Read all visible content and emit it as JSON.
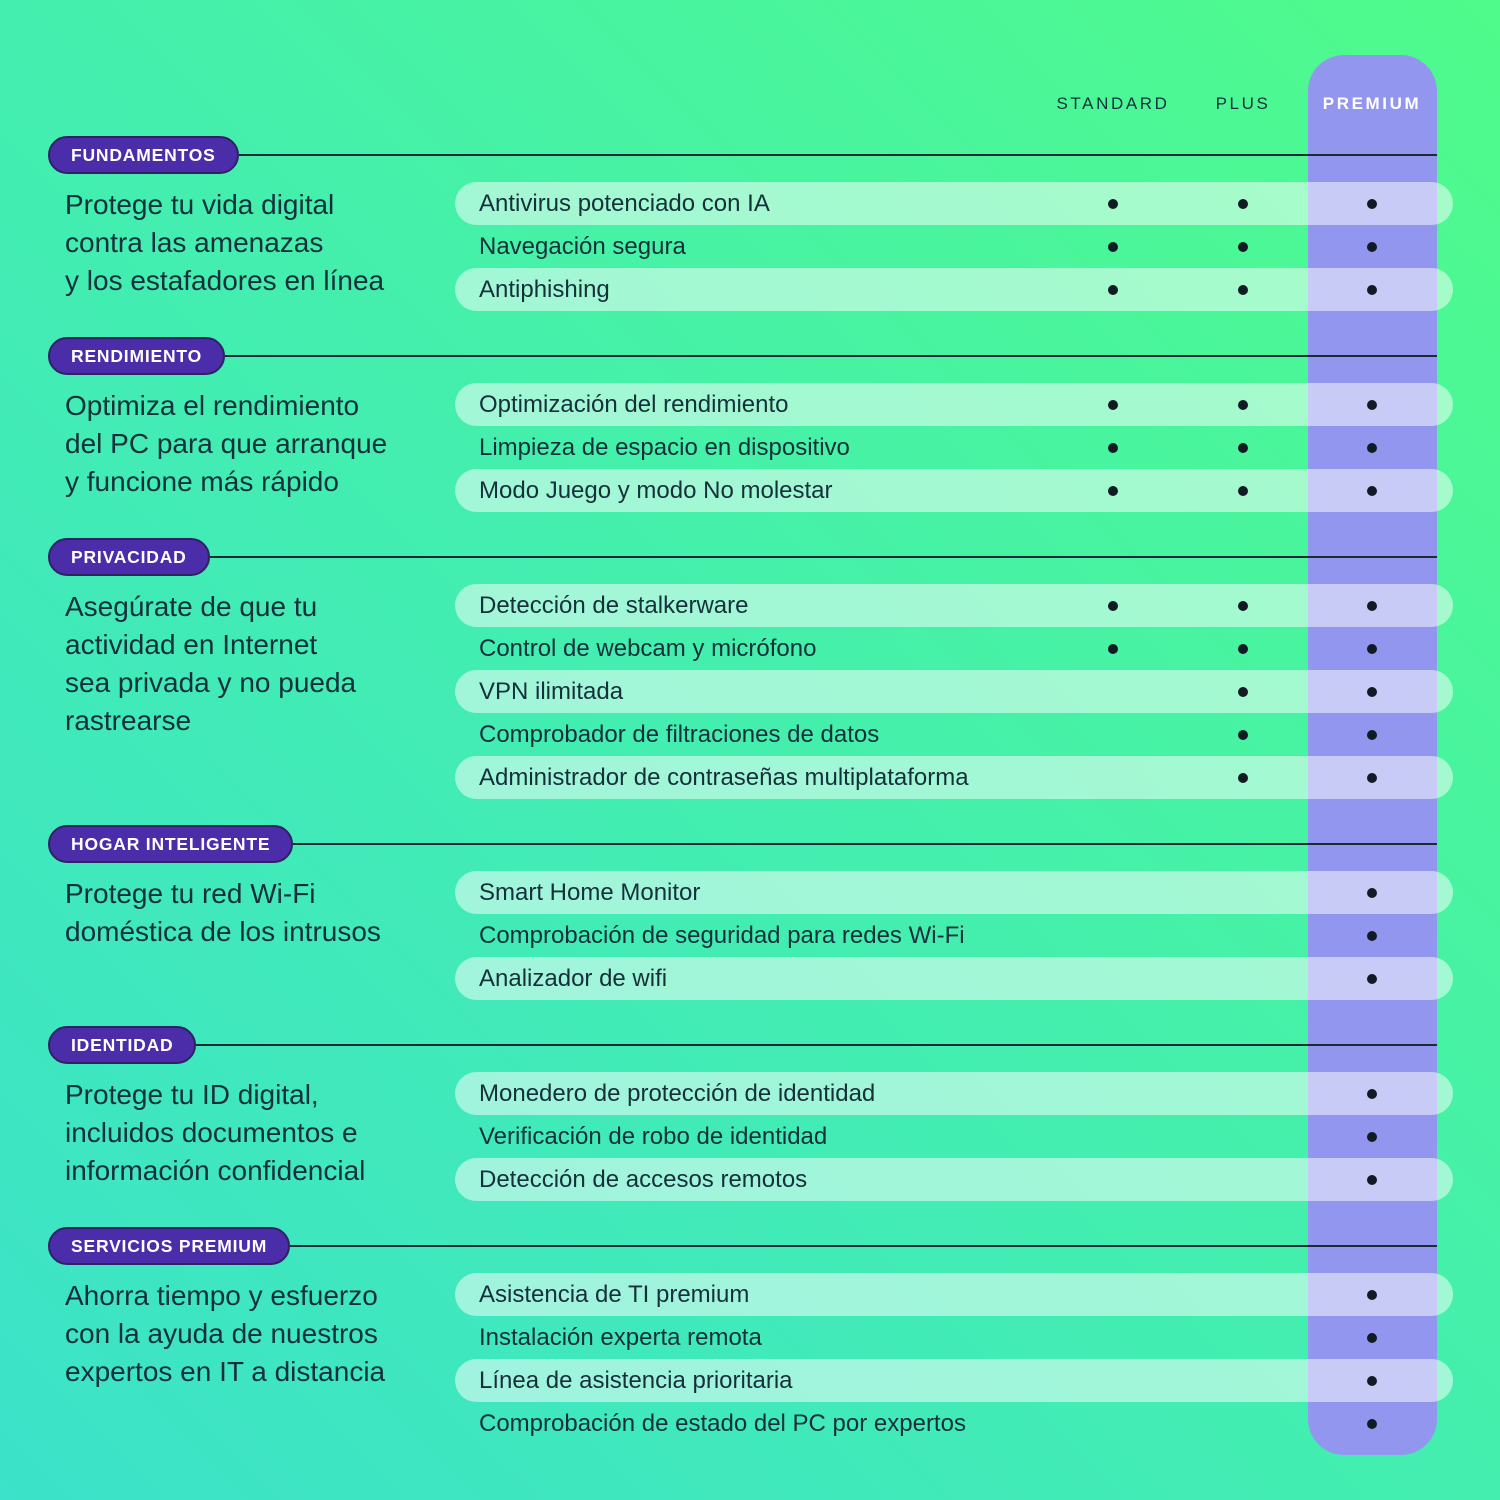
{
  "columns": [
    {
      "label": "STANDARD"
    },
    {
      "label": "PLUS"
    },
    {
      "label": "PREMIUM"
    }
  ],
  "colors": {
    "background_green": "#4ffb8a",
    "background_teal": "#3ce2c9",
    "premium_band": "#9396ee",
    "badge_purple": "#4b2ca9",
    "row_pill": "rgba(255,255,255,0.5)",
    "text_dark": "#14303a",
    "dot": "#111b24"
  },
  "sections": [
    {
      "badge": "FUNDAMENTOS",
      "description": "Protege tu vida digital\ncontra las amenazas\ny los estafadores en línea",
      "features": [
        {
          "label": "Antivirus potenciado con IA",
          "tiers": [
            true,
            true,
            true
          ]
        },
        {
          "label": "Navegación segura",
          "tiers": [
            true,
            true,
            true
          ]
        },
        {
          "label": "Antiphishing",
          "tiers": [
            true,
            true,
            true
          ]
        }
      ]
    },
    {
      "badge": "RENDIMIENTO",
      "description": "Optimiza el rendimiento\ndel PC para que arranque\ny funcione más rápido",
      "features": [
        {
          "label": "Optimización del rendimiento",
          "tiers": [
            true,
            true,
            true
          ]
        },
        {
          "label": "Limpieza de espacio en dispositivo",
          "tiers": [
            true,
            true,
            true
          ]
        },
        {
          "label": "Modo Juego y modo No molestar",
          "tiers": [
            true,
            true,
            true
          ]
        }
      ]
    },
    {
      "badge": "PRIVACIDAD",
      "description": "Asegúrate de que tu\nactividad en Internet\nsea privada y no pueda\nrastrearse",
      "features": [
        {
          "label": "Detección de stalkerware",
          "tiers": [
            true,
            true,
            true
          ]
        },
        {
          "label": "Control de webcam y micrófono",
          "tiers": [
            true,
            true,
            true
          ]
        },
        {
          "label": "VPN ilimitada",
          "tiers": [
            false,
            true,
            true
          ]
        },
        {
          "label": "Comprobador de filtraciones de datos",
          "tiers": [
            false,
            true,
            true
          ]
        },
        {
          "label": "Administrador de contraseñas multiplataforma",
          "tiers": [
            false,
            true,
            true
          ]
        }
      ]
    },
    {
      "badge": "HOGAR INTELIGENTE",
      "description": "Protege tu red Wi-Fi\ndoméstica de los intrusos",
      "features": [
        {
          "label": "Smart Home Monitor",
          "tiers": [
            false,
            false,
            true
          ]
        },
        {
          "label": "Comprobación de seguridad para redes Wi-Fi",
          "tiers": [
            false,
            false,
            true
          ]
        },
        {
          "label": "Analizador de wifi",
          "tiers": [
            false,
            false,
            true
          ]
        }
      ]
    },
    {
      "badge": "IDENTIDAD",
      "description": "Protege tu ID digital,\nincluidos documentos e\ninformación confidencial",
      "features": [
        {
          "label": "Monedero de protección de identidad",
          "tiers": [
            false,
            false,
            true
          ]
        },
        {
          "label": "Verificación de robo de identidad",
          "tiers": [
            false,
            false,
            true
          ]
        },
        {
          "label": "Detección de accesos remotos",
          "tiers": [
            false,
            false,
            true
          ]
        }
      ]
    },
    {
      "badge": "SERVICIOS PREMIUM",
      "description": "Ahorra tiempo y esfuerzo\ncon la ayuda de nuestros\nexpertos en IT a distancia",
      "features": [
        {
          "label": "Asistencia de TI premium",
          "tiers": [
            false,
            false,
            true
          ]
        },
        {
          "label": "Instalación experta remota",
          "tiers": [
            false,
            false,
            true
          ]
        },
        {
          "label": "Línea de asistencia prioritaria",
          "tiers": [
            false,
            false,
            true
          ]
        },
        {
          "label": "Comprobación de estado del PC por expertos",
          "tiers": [
            false,
            false,
            true
          ]
        }
      ]
    }
  ]
}
